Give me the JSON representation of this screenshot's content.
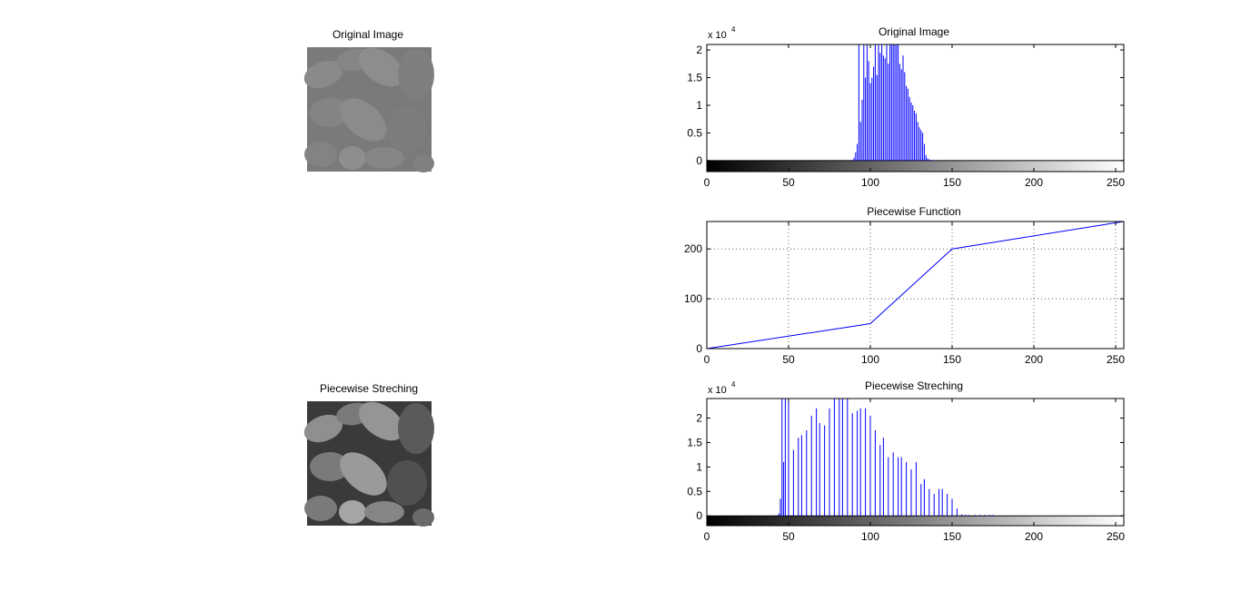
{
  "figure": {
    "panels": {
      "orig_image": {
        "title": "Original Image"
      },
      "orig_hist": {
        "title": "Original Image",
        "yscale_label": "x 10",
        "yscale_exp": "4"
      },
      "piecewise": {
        "title": "Piecewise Function"
      },
      "stretch_image": {
        "title": "Piecewise Streching"
      },
      "stretch_hist": {
        "title": "Piecewise Streching",
        "yscale_label": "x 10",
        "yscale_exp": "4"
      }
    }
  },
  "colors": {
    "plot_line": "#0000ff",
    "axes": "#000000",
    "grid": "#000000",
    "background": "#ffffff"
  },
  "chart_data": [
    {
      "type": "bar",
      "title": "Original Image",
      "xlabel": "",
      "ylabel": "",
      "y_multiplier": "x 10^4",
      "xlim": [
        0,
        255
      ],
      "ylim": [
        -0.2,
        2.1
      ],
      "xticks": [
        0,
        50,
        100,
        150,
        200,
        250
      ],
      "yticks": [
        0,
        0.5,
        1,
        1.5,
        2
      ],
      "colorbar": "grayscale 0-255 under axis",
      "grid": false,
      "x": [
        88,
        90,
        91,
        92,
        93,
        94,
        95,
        96,
        97,
        98,
        99,
        100,
        101,
        102,
        103,
        104,
        105,
        106,
        107,
        108,
        109,
        110,
        111,
        112,
        113,
        114,
        115,
        116,
        117,
        118,
        119,
        120,
        121,
        122,
        123,
        124,
        125,
        126,
        127,
        128,
        129,
        130,
        131,
        132,
        133,
        134,
        135,
        136,
        137,
        138,
        139,
        140
      ],
      "values": [
        0.01,
        0.05,
        0.15,
        0.3,
        2.1,
        0.7,
        1.1,
        2.1,
        1.5,
        2.1,
        1.8,
        1.4,
        1.5,
        1.7,
        2.1,
        1.55,
        2.1,
        1.95,
        2.1,
        1.9,
        1.85,
        2.1,
        1.75,
        2.1,
        2.1,
        2.1,
        2.1,
        2.1,
        2.1,
        1.75,
        1.65,
        1.9,
        1.6,
        1.35,
        1.3,
        1.15,
        1.05,
        1.0,
        0.9,
        0.85,
        0.7,
        0.6,
        0.55,
        0.5,
        0.3,
        0.1,
        0.04,
        0.02,
        0.01,
        0.01,
        0.005,
        0.005
      ]
    },
    {
      "type": "line",
      "title": "Piecewise Function",
      "xlabel": "",
      "ylabel": "",
      "xlim": [
        0,
        255
      ],
      "ylim": [
        0,
        255
      ],
      "xticks": [
        0,
        50,
        100,
        150,
        200,
        250
      ],
      "yticks": [
        0,
        100,
        200
      ],
      "grid": true,
      "x": [
        0,
        100,
        150,
        255
      ],
      "values": [
        0,
        50,
        200,
        255
      ]
    },
    {
      "type": "bar",
      "title": "Piecewise Streching",
      "xlabel": "",
      "ylabel": "",
      "y_multiplier": "x 10^4",
      "xlim": [
        0,
        255
      ],
      "ylim": [
        -0.2,
        2.4
      ],
      "xticks": [
        0,
        50,
        100,
        150,
        200,
        250
      ],
      "yticks": [
        0,
        0.5,
        1,
        1.5,
        2
      ],
      "colorbar": "grayscale 0-255 under axis",
      "grid": false,
      "x": [
        44,
        45,
        46,
        47,
        48,
        50,
        53,
        56,
        58,
        61,
        64,
        67,
        69,
        72,
        75,
        78,
        81,
        83,
        86,
        89,
        92,
        94,
        97,
        100,
        103,
        106,
        108,
        111,
        114,
        117,
        119,
        122,
        125,
        128,
        131,
        133,
        136,
        139,
        142,
        144,
        147,
        150,
        153,
        156,
        158,
        160,
        164,
        167,
        170,
        173,
        175
      ],
      "values": [
        0.05,
        0.35,
        2.4,
        1.1,
        2.4,
        2.4,
        1.35,
        1.6,
        1.65,
        1.75,
        2.05,
        2.2,
        1.9,
        1.85,
        2.2,
        2.4,
        2.4,
        2.4,
        2.4,
        2.1,
        2.15,
        2.2,
        2.2,
        2.05,
        1.75,
        1.45,
        1.6,
        1.2,
        1.3,
        1.2,
        1.2,
        1.1,
        0.95,
        1.1,
        0.65,
        0.75,
        0.55,
        0.45,
        0.55,
        0.55,
        0.45,
        0.35,
        0.15,
        0.03,
        0.02,
        0.02,
        0.02,
        0.02,
        0.02,
        0.02,
        0.02
      ]
    }
  ]
}
